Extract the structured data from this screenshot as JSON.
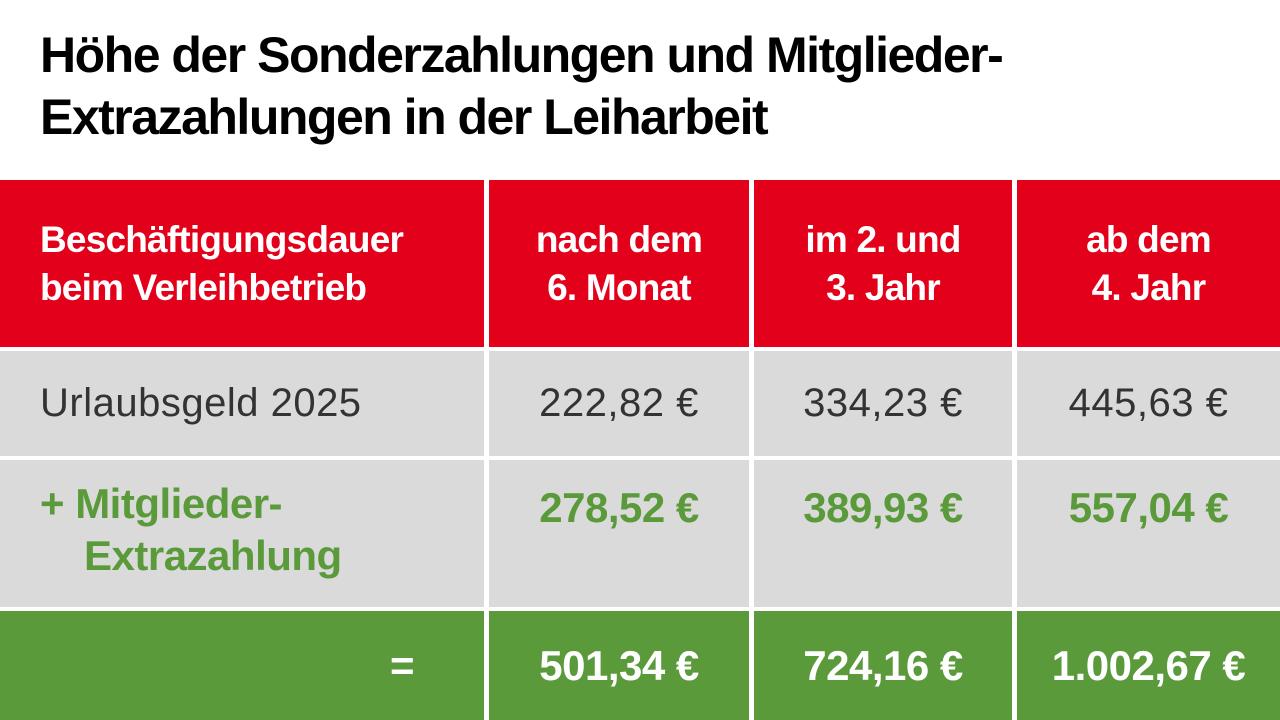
{
  "title_lines": [
    "Höhe der Sonderzahlungen und Mitglieder-",
    "Extrazahlungen in der Leiharbeit"
  ],
  "colors": {
    "header_bg": "#e2001a",
    "row_bg": "#dadada",
    "accent_green": "#5a9a3a",
    "total_bg": "#5a9a3a"
  },
  "chart_data": {
    "type": "table",
    "header": {
      "label_lines": [
        "Beschäftigungsdauer",
        "beim Verleihbetrieb"
      ],
      "columns": [
        [
          "nach dem",
          "6. Monat"
        ],
        [
          "im 2. und",
          "3. Jahr"
        ],
        [
          "ab dem",
          "4. Jahr"
        ]
      ]
    },
    "rows": [
      {
        "label_lines": [
          "Urlaubsgeld 2025"
        ],
        "values": [
          "222,82 €",
          "334,23 €",
          "445,63 €"
        ]
      },
      {
        "label_lines": [
          "+ Mitglieder-",
          "Extrazahlung"
        ],
        "values": [
          "278,52 €",
          "389,93 €",
          "557,04 €"
        ]
      },
      {
        "label_lines": [
          "="
        ],
        "values": [
          "501,34 €",
          "724,16 €",
          "1.002,67 €"
        ]
      }
    ]
  }
}
